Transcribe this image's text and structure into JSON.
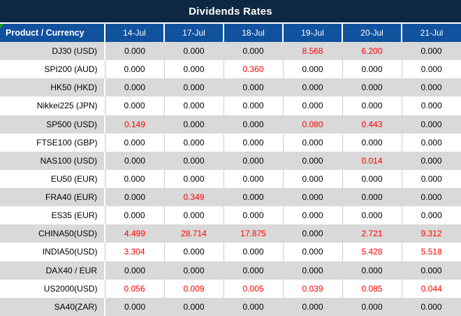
{
  "title": "Dividends Rates",
  "columns": [
    "Product / Currency",
    "14-Jul",
    "17-Jul",
    "18-Jul",
    "19-Jul",
    "20-Jul",
    "21-Jul"
  ],
  "rows": [
    {
      "product": "DJ30 (USD)",
      "values": [
        "0.000",
        "0.000",
        "0.000",
        "8.568",
        "6.200",
        "0.000"
      ],
      "red": [
        3,
        4
      ]
    },
    {
      "product": "SPI200 (AUD)",
      "values": [
        "0.000",
        "0.000",
        "0.360",
        "0.000",
        "0.000",
        "0.000"
      ],
      "red": [
        2
      ]
    },
    {
      "product": "HK50 (HKD)",
      "values": [
        "0.000",
        "0.000",
        "0.000",
        "0.000",
        "0.000",
        "0.000"
      ],
      "red": []
    },
    {
      "product": "Nikkei225 (JPN)",
      "values": [
        "0.000",
        "0.000",
        "0.000",
        "0.000",
        "0.000",
        "0.000"
      ],
      "red": []
    },
    {
      "product": "SP500 (USD)",
      "values": [
        "0.149",
        "0.000",
        "0.000",
        "0.080",
        "0.443",
        "0.000"
      ],
      "red": [
        0,
        3,
        4
      ]
    },
    {
      "product": "FTSE100 (GBP)",
      "values": [
        "0.000",
        "0.000",
        "0.000",
        "0.000",
        "0.000",
        "0.000"
      ],
      "red": []
    },
    {
      "product": "NAS100 (USD)",
      "values": [
        "0.000",
        "0.000",
        "0.000",
        "0.000",
        "0.014",
        "0.000"
      ],
      "red": [
        4
      ]
    },
    {
      "product": "EU50 (EUR)",
      "values": [
        "0.000",
        "0.000",
        "0.000",
        "0.000",
        "0.000",
        "0.000"
      ],
      "red": []
    },
    {
      "product": "FRA40 (EUR)",
      "values": [
        "0.000",
        "0.349",
        "0.000",
        "0.000",
        "0.000",
        "0.000"
      ],
      "red": [
        1
      ]
    },
    {
      "product": "ES35 (EUR)",
      "values": [
        "0.000",
        "0.000",
        "0.000",
        "0.000",
        "0.000",
        "0.000"
      ],
      "red": []
    },
    {
      "product": "CHINA50(USD)",
      "values": [
        "4.499",
        "28.714",
        "17.875",
        "0.000",
        "2.721",
        "9.312"
      ],
      "red": [
        0,
        1,
        2,
        4,
        5
      ]
    },
    {
      "product": "INDIA50(USD)",
      "values": [
        "3.304",
        "0.000",
        "0.000",
        "0.000",
        "5.428",
        "5.518"
      ],
      "red": [
        0,
        4,
        5
      ]
    },
    {
      "product": "DAX40 / EUR",
      "values": [
        "0.000",
        "0.000",
        "0.000",
        "0.000",
        "0.000",
        "0.000"
      ],
      "red": []
    },
    {
      "product": "US2000(USD)",
      "values": [
        "0.056",
        "0.009",
        "0.005",
        "0.039",
        "0.085",
        "0.044"
      ],
      "red": [
        0,
        1,
        2,
        3,
        4,
        5
      ]
    },
    {
      "product": "SA40(ZAR)",
      "values": [
        "0.000",
        "0.000",
        "0.000",
        "0.000",
        "0.000",
        "0.000"
      ],
      "red": []
    }
  ],
  "icons": {
    "corner_marker": "green-triangle"
  },
  "colors": {
    "title_bg": "#0e2843",
    "header_bg": "#11529e",
    "band_gray": "#d9d9d9",
    "value_red": "#ff0000",
    "value_black": "#000000",
    "marker_green": "#21a121",
    "grid_line": "#c3ccd6"
  }
}
